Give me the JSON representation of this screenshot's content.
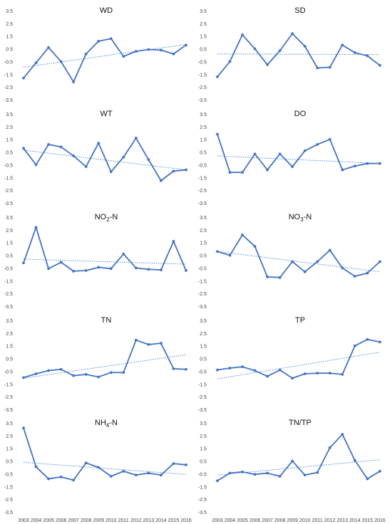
{
  "style": {
    "series_color": "#4472c4",
    "trend_color": "#5b8bd6",
    "axis_label_color": "#444444",
    "title_color": "#111111"
  },
  "chart_data": [
    {
      "type": "line",
      "title": "WD",
      "x": [
        2003,
        2004,
        2005,
        2006,
        2007,
        2008,
        2009,
        2010,
        2011,
        2012,
        2013,
        2014,
        2015,
        2016
      ],
      "series": [
        {
          "values": [
            -1.8,
            -0.6,
            0.6,
            -0.5,
            -2.1,
            0.1,
            1.1,
            1.3,
            -0.1,
            0.3,
            0.45,
            0.4,
            0.1,
            0.8
          ]
        }
      ],
      "trendline": [
        -0.95,
        0.85
      ],
      "ylim": [
        -3.5,
        3.5
      ],
      "yticks": [
        "3.5",
        "2.5",
        "1.5",
        "0.5",
        "-0.5",
        "-1.5",
        "-2.5",
        "-3.5"
      ],
      "show_xticks": false
    },
    {
      "type": "line",
      "title": "SD",
      "x": [
        2003,
        2004,
        2005,
        2006,
        2007,
        2008,
        2009,
        2010,
        2011,
        2012,
        2013,
        2014,
        2015,
        2016
      ],
      "series": [
        {
          "values": [
            -1.7,
            -0.5,
            1.6,
            0.5,
            -0.75,
            0.35,
            1.7,
            0.7,
            -1.0,
            -0.95,
            0.8,
            0.2,
            -0.05,
            -0.8
          ]
        }
      ],
      "trendline": [
        0.1,
        0.05
      ],
      "ylim": [
        -3.5,
        3.5
      ],
      "yticks": [
        "3.5",
        "2.5",
        "1.5",
        "0.5",
        "-0.5",
        "-1.5",
        "-2.5",
        "-3.5"
      ],
      "show_xticks": false
    },
    {
      "type": "line",
      "title": "WT",
      "x": [
        2003,
        2004,
        2005,
        2006,
        2007,
        2008,
        2009,
        2010,
        2011,
        2012,
        2013,
        2014,
        2015,
        2016
      ],
      "series": [
        {
          "values": [
            0.8,
            -0.5,
            1.1,
            0.9,
            0.2,
            -0.65,
            1.2,
            -1.05,
            0.1,
            1.6,
            -0.1,
            -1.75,
            -1.0,
            -0.9
          ]
        }
      ],
      "trendline": [
        0.65,
        -0.9
      ],
      "ylim": [
        -3.5,
        3.5
      ],
      "yticks": [
        "3.5",
        "2.5",
        "1.5",
        "0.5",
        "-0.5",
        "-1.5",
        "-2.5",
        "-3.5"
      ],
      "show_xticks": false
    },
    {
      "type": "line",
      "title": "DO",
      "x": [
        2003,
        2004,
        2005,
        2006,
        2007,
        2008,
        2009,
        2010,
        2011,
        2012,
        2013,
        2014,
        2015,
        2016
      ],
      "series": [
        {
          "values": [
            1.9,
            -1.1,
            -1.1,
            0.35,
            -0.9,
            0.35,
            -0.65,
            0.6,
            1.1,
            1.5,
            -0.9,
            -0.6,
            -0.4,
            -0.4
          ]
        }
      ],
      "trendline": [
        0.2,
        -0.4
      ],
      "ylim": [
        -3.5,
        3.5
      ],
      "yticks": [
        "3.5",
        "2.5",
        "1.5",
        "0.5",
        "-0.5",
        "-1.5",
        "-2.5",
        "-3.5"
      ],
      "show_xticks": false
    },
    {
      "type": "line",
      "title": "NO",
      "title_sub": "2",
      "title_suffix": "-N",
      "x": [
        2003,
        2004,
        2005,
        2006,
        2007,
        2008,
        2009,
        2010,
        2011,
        2012,
        2013,
        2014,
        2015,
        2016
      ],
      "series": [
        {
          "values": [
            -0.1,
            2.7,
            -0.55,
            -0.05,
            -0.75,
            -0.7,
            -0.45,
            -0.55,
            0.6,
            -0.5,
            -0.6,
            -0.65,
            1.6,
            -0.7
          ]
        }
      ],
      "trendline": [
        0.2,
        -0.2
      ],
      "ylim": [
        -3.5,
        3.5
      ],
      "yticks": [
        "3.5",
        "2.5",
        "1.5",
        "0.5",
        "-0.5",
        "-1.5",
        "-2.5",
        "-3.5"
      ],
      "show_xticks": false
    },
    {
      "type": "line",
      "title": "NO",
      "title_sub": "3",
      "title_suffix": "-N",
      "x": [
        2003,
        2004,
        2005,
        2006,
        2007,
        2008,
        2009,
        2010,
        2011,
        2012,
        2013,
        2014,
        2015,
        2016
      ],
      "series": [
        {
          "values": [
            0.8,
            0.5,
            2.1,
            1.2,
            -1.2,
            -1.25,
            0.0,
            -0.8,
            0.0,
            0.9,
            -0.5,
            -1.15,
            -0.9,
            0.0
          ]
        }
      ],
      "trendline": [
        0.8,
        -0.8
      ],
      "ylim": [
        -3.5,
        3.5
      ],
      "yticks": [
        "3.5",
        "2.5",
        "1.5",
        "0.5",
        "-0.5",
        "-1.5",
        "-2.5",
        "-3.5"
      ],
      "show_xticks": false
    },
    {
      "type": "line",
      "title": "TN",
      "x": [
        2003,
        2004,
        2005,
        2006,
        2007,
        2008,
        2009,
        2010,
        2011,
        2012,
        2013,
        2014,
        2015,
        2016
      ],
      "series": [
        {
          "values": [
            -1.0,
            -0.7,
            -0.45,
            -0.35,
            -0.85,
            -0.75,
            -0.95,
            -0.6,
            -0.6,
            1.95,
            1.6,
            1.7,
            -0.3,
            -0.35
          ]
        }
      ],
      "trendline": [
        -1.05,
        0.8
      ],
      "ylim": [
        -3.5,
        3.5
      ],
      "yticks": [
        "3.5",
        "2.5",
        "1.5",
        "0.5",
        "-0.5",
        "-1.5",
        "-2.5",
        "-3.5"
      ],
      "show_xticks": false
    },
    {
      "type": "line",
      "title": "TP",
      "x": [
        2003,
        2004,
        2005,
        2006,
        2007,
        2008,
        2009,
        2010,
        2011,
        2012,
        2013,
        2014,
        2015,
        2016
      ],
      "series": [
        {
          "values": [
            -0.4,
            -0.25,
            -0.15,
            -0.45,
            -0.9,
            -0.4,
            -1.05,
            -0.7,
            -0.65,
            -0.65,
            -0.75,
            1.5,
            2.0,
            1.8
          ]
        }
      ],
      "trendline": [
        -1.1,
        1.0
      ],
      "ylim": [
        -3.5,
        3.5
      ],
      "yticks": [
        "3.5",
        "2.5",
        "1.5",
        "0.5",
        "-0.5",
        "-1.5",
        "-2.5",
        "-3.5"
      ],
      "show_xticks": false
    },
    {
      "type": "line",
      "title": "NH",
      "title_sub": "4",
      "title_suffix": "-N",
      "x": [
        2003,
        2004,
        2005,
        2006,
        2007,
        2008,
        2009,
        2010,
        2011,
        2012,
        2013,
        2014,
        2015,
        2016
      ],
      "series": [
        {
          "values": [
            3.1,
            0.05,
            -0.9,
            -0.75,
            -1.0,
            0.35,
            0.0,
            -0.7,
            -0.3,
            -0.6,
            -0.45,
            -0.6,
            0.3,
            0.2
          ]
        }
      ],
      "trendline": [
        0.4,
        -0.55
      ],
      "ylim": [
        -3.5,
        3.5
      ],
      "yticks": [
        "3.5",
        "2.5",
        "1.5",
        "0.5",
        "-0.5",
        "-1.5",
        "-2.5",
        "-3.5"
      ],
      "show_xticks": true
    },
    {
      "type": "line",
      "title": "TN/TP",
      "x": [
        2003,
        2004,
        2005,
        2006,
        2007,
        2008,
        2009,
        2010,
        2011,
        2012,
        2013,
        2014,
        2015,
        2016
      ],
      "series": [
        {
          "values": [
            -1.05,
            -0.45,
            -0.35,
            -0.55,
            -0.45,
            -0.7,
            0.5,
            -0.6,
            -0.4,
            1.55,
            2.6,
            0.55,
            -0.9,
            -0.3
          ]
        }
      ],
      "trendline": [
        -0.6,
        0.6
      ],
      "ylim": [
        -3.5,
        3.5
      ],
      "yticks": [
        "3.5",
        "2.5",
        "1.5",
        "0.5",
        "-0.5",
        "-1.5",
        "-2.5",
        "-3.5"
      ],
      "show_xticks": true
    }
  ]
}
